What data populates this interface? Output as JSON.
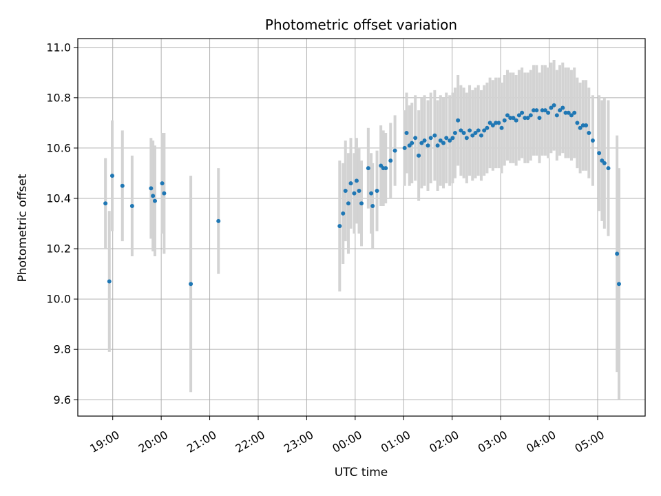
{
  "chart_data": {
    "type": "scatter",
    "title": "Photometric offset variation",
    "xlabel": "UTC time",
    "ylabel": "Photometric offset",
    "grid": true,
    "xlim_hours": [
      18.28,
      29.98
    ],
    "ylim": [
      9.535,
      11.035
    ],
    "x_ticks": [
      {
        "value": 19,
        "label": "19:00"
      },
      {
        "value": 20,
        "label": "20:00"
      },
      {
        "value": 21,
        "label": "21:00"
      },
      {
        "value": 22,
        "label": "22:00"
      },
      {
        "value": 23,
        "label": "23:00"
      },
      {
        "value": 24,
        "label": "00:00"
      },
      {
        "value": 25,
        "label": "01:00"
      },
      {
        "value": 26,
        "label": "02:00"
      },
      {
        "value": 27,
        "label": "03:00"
      },
      {
        "value": 28,
        "label": "04:00"
      },
      {
        "value": 29,
        "label": "05:00"
      }
    ],
    "y_ticks": [
      {
        "value": 9.6,
        "label": "9.6"
      },
      {
        "value": 9.8,
        "label": "9.8"
      },
      {
        "value": 10.0,
        "label": "10.0"
      },
      {
        "value": 10.2,
        "label": "10.2"
      },
      {
        "value": 10.4,
        "label": "10.4"
      },
      {
        "value": 10.6,
        "label": "10.6"
      },
      {
        "value": 10.8,
        "label": "10.8"
      },
      {
        "value": 11.0,
        "label": "11.0"
      }
    ],
    "colors": {
      "marker": "#1f77b4",
      "errorbar": "#d3d3d3",
      "grid": "#b0b0b0"
    },
    "series": [
      {
        "name": "Photometric offset",
        "x_hours": [
          18.85,
          18.93,
          18.99,
          19.2,
          19.4,
          19.79,
          19.83,
          19.87,
          20.02,
          20.06,
          20.61,
          21.18,
          23.68,
          23.75,
          23.8,
          23.86,
          23.91,
          23.98,
          24.03,
          24.08,
          24.13,
          24.27,
          24.33,
          24.36,
          24.45,
          24.53,
          24.58,
          24.63,
          24.73,
          24.82,
          25.02,
          25.06,
          25.12,
          25.17,
          25.24,
          25.31,
          25.37,
          25.43,
          25.5,
          25.56,
          25.64,
          25.7,
          25.76,
          25.82,
          25.88,
          25.95,
          26.01,
          26.06,
          26.12,
          26.18,
          26.24,
          26.3,
          26.36,
          26.42,
          26.48,
          26.54,
          26.6,
          26.66,
          26.72,
          26.78,
          26.84,
          26.9,
          26.96,
          27.02,
          27.08,
          27.14,
          27.2,
          27.26,
          27.32,
          27.38,
          27.44,
          27.5,
          27.56,
          27.62,
          27.68,
          27.74,
          27.8,
          27.86,
          27.92,
          27.98,
          28.04,
          28.1,
          28.16,
          28.22,
          28.28,
          28.34,
          28.4,
          28.46,
          28.52,
          28.58,
          28.64,
          28.7,
          28.76,
          28.82,
          28.9,
          29.03,
          29.09,
          29.14,
          29.22,
          29.4,
          29.44
        ],
        "y": [
          10.38,
          10.07,
          10.49,
          10.45,
          10.37,
          10.44,
          10.41,
          10.39,
          10.46,
          10.42,
          10.06,
          10.31,
          10.29,
          10.34,
          10.43,
          10.38,
          10.46,
          10.42,
          10.47,
          10.43,
          10.38,
          10.52,
          10.42,
          10.37,
          10.43,
          10.53,
          10.52,
          10.52,
          10.55,
          10.59,
          10.6,
          10.66,
          10.61,
          10.62,
          10.64,
          10.57,
          10.62,
          10.63,
          10.61,
          10.64,
          10.65,
          10.61,
          10.63,
          10.62,
          10.64,
          10.63,
          10.64,
          10.66,
          10.71,
          10.67,
          10.66,
          10.64,
          10.67,
          10.65,
          10.66,
          10.67,
          10.65,
          10.67,
          10.68,
          10.7,
          10.69,
          10.7,
          10.7,
          10.68,
          10.71,
          10.73,
          10.72,
          10.72,
          10.71,
          10.73,
          10.74,
          10.72,
          10.72,
          10.73,
          10.75,
          10.75,
          10.72,
          10.75,
          10.75,
          10.74,
          10.76,
          10.77,
          10.73,
          10.75,
          10.76,
          10.74,
          10.74,
          10.73,
          10.74,
          10.7,
          10.68,
          10.69,
          10.69,
          10.66,
          10.63,
          10.58,
          10.55,
          10.54,
          10.52,
          10.18,
          10.06
        ],
        "yerr": [
          0.18,
          0.28,
          0.22,
          0.22,
          0.2,
          0.2,
          0.22,
          0.22,
          0.2,
          0.24,
          0.43,
          0.21,
          0.26,
          0.2,
          0.2,
          0.2,
          0.18,
          0.16,
          0.17,
          0.17,
          0.17,
          0.16,
          0.16,
          0.17,
          0.16,
          0.16,
          0.15,
          0.14,
          0.15,
          0.14,
          0.15,
          0.16,
          0.16,
          0.16,
          0.17,
          0.18,
          0.18,
          0.18,
          0.18,
          0.18,
          0.18,
          0.18,
          0.18,
          0.18,
          0.18,
          0.18,
          0.18,
          0.18,
          0.18,
          0.18,
          0.18,
          0.18,
          0.18,
          0.18,
          0.18,
          0.18,
          0.18,
          0.18,
          0.18,
          0.18,
          0.18,
          0.18,
          0.18,
          0.18,
          0.18,
          0.18,
          0.18,
          0.18,
          0.18,
          0.18,
          0.18,
          0.18,
          0.18,
          0.18,
          0.18,
          0.18,
          0.18,
          0.18,
          0.18,
          0.18,
          0.18,
          0.18,
          0.18,
          0.18,
          0.18,
          0.18,
          0.18,
          0.18,
          0.18,
          0.18,
          0.18,
          0.18,
          0.18,
          0.18,
          0.18,
          0.23,
          0.24,
          0.26,
          0.27,
          0.47,
          0.46
        ]
      }
    ]
  }
}
